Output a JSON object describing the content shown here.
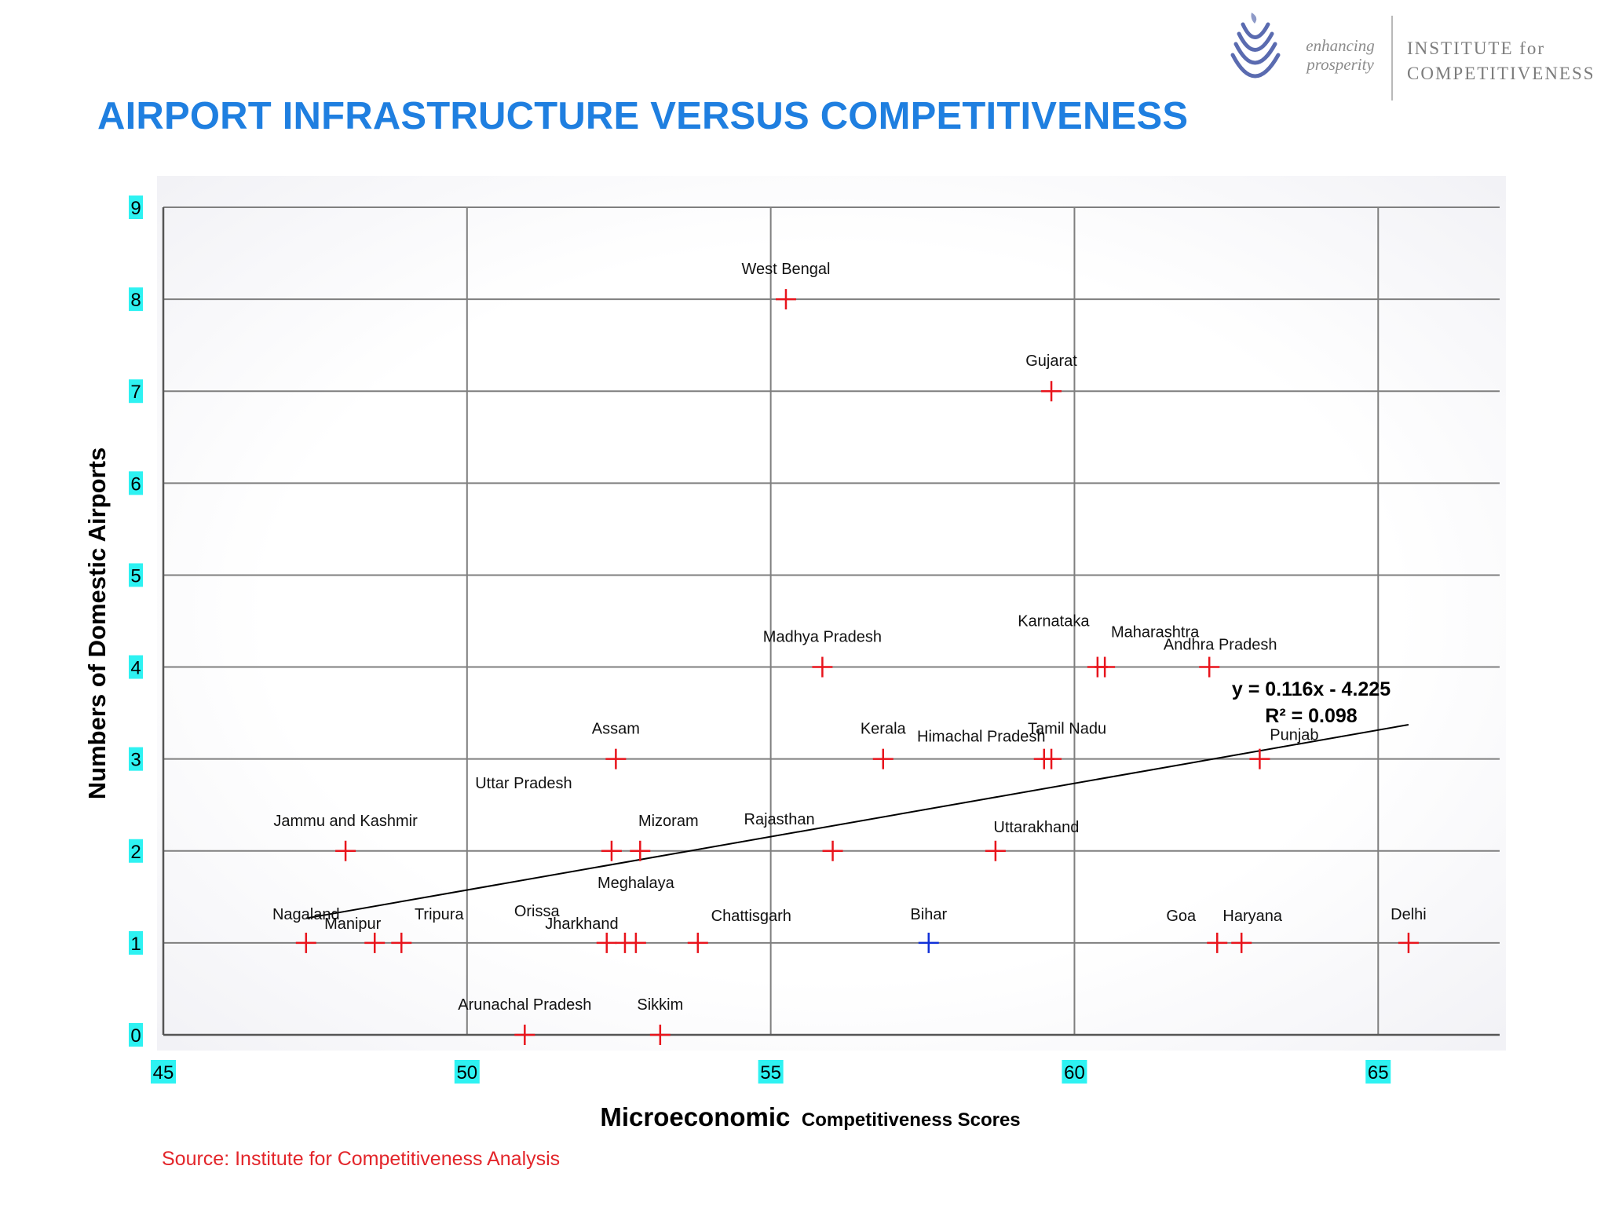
{
  "header": {
    "title": "AIRPORT INFRASTRUCTURE VERSUS COMPETITIVENESS",
    "logo": {
      "tagline_line1": "enhancing",
      "tagline_line2": "prosperity",
      "name_line1": "INSTITUTE for",
      "name_line2": "COMPETITIVENESS",
      "emblem_icon": "layered-leaf-emblem-icon",
      "emblem_color": "#5a6bb0"
    }
  },
  "footer": {
    "source": "Source: Institute for Competitiveness Analysis"
  },
  "colors": {
    "marker_default": "#e8141c",
    "marker_highlight": "#1030d8",
    "grid": "#7f7f7f",
    "tick_label_bg": "#2ef2f2",
    "trendline": "#000000"
  },
  "chart_data": {
    "type": "scatter",
    "xlabel_main": "Microeconomic",
    "xlabel_sub": "Competitiveness Scores",
    "ylabel": "Numbers of Domestic Airports",
    "xlim": [
      45,
      67
    ],
    "ylim": [
      0,
      9
    ],
    "x_ticks": [
      "45",
      "50",
      "55",
      "60",
      "65"
    ],
    "y_ticks": [
      "0",
      "1",
      "2",
      "3",
      "4",
      "5",
      "6",
      "7",
      "8",
      "9"
    ],
    "grid": true,
    "marker": "plus",
    "points": [
      {
        "label": "West Bengal",
        "x": 55.25,
        "y": 8,
        "highlight": false
      },
      {
        "label": "Gujarat",
        "x": 59.62,
        "y": 7,
        "highlight": false
      },
      {
        "label": "Madhya Pradesh",
        "x": 55.85,
        "y": 4,
        "highlight": false
      },
      {
        "label": "Karnataka",
        "x": 60.38,
        "y": 4,
        "highlight": false
      },
      {
        "label": "Maharashtra",
        "x": 60.5,
        "y": 4,
        "highlight": false
      },
      {
        "label": "Andhra Pradesh",
        "x": 62.22,
        "y": 4,
        "highlight": false
      },
      {
        "label": "Assam",
        "x": 52.45,
        "y": 3,
        "highlight": false
      },
      {
        "label": "Kerala",
        "x": 56.85,
        "y": 3,
        "highlight": false
      },
      {
        "label": "Himachal Pradesh",
        "x": 59.5,
        "y": 3,
        "highlight": false
      },
      {
        "label": "Tamil Nadu",
        "x": 59.62,
        "y": 3,
        "highlight": false
      },
      {
        "label": "Punjab",
        "x": 63.05,
        "y": 3,
        "highlight": false
      },
      {
        "label": "Jammu and Kashmir",
        "x": 48.0,
        "y": 2,
        "highlight": false
      },
      {
        "label": "Uttar Pradesh",
        "x": 52.38,
        "y": 2,
        "highlight": false
      },
      {
        "label": "Mizoram",
        "x": 52.85,
        "y": 2,
        "highlight": false
      },
      {
        "label": "Rajasthan",
        "x": 56.02,
        "y": 2,
        "highlight": false
      },
      {
        "label": "Uttarakhand",
        "x": 58.7,
        "y": 2,
        "highlight": false
      },
      {
        "label": "Nagaland",
        "x": 47.35,
        "y": 1,
        "highlight": false
      },
      {
        "label": "Manipur",
        "x": 48.48,
        "y": 1,
        "highlight": false
      },
      {
        "label": "Tripura",
        "x": 48.92,
        "y": 1,
        "highlight": false
      },
      {
        "label": "Orissa",
        "x": 52.3,
        "y": 1,
        "highlight": false
      },
      {
        "label": "Jharkhand",
        "x": 52.6,
        "y": 1,
        "highlight": false
      },
      {
        "label": "Meghalaya",
        "x": 52.78,
        "y": 1,
        "highlight": false
      },
      {
        "label": "Chattisgarh",
        "x": 53.8,
        "y": 1,
        "highlight": false
      },
      {
        "label": "Bihar",
        "x": 57.6,
        "y": 1,
        "highlight": true
      },
      {
        "label": "Goa",
        "x": 62.35,
        "y": 1,
        "highlight": false
      },
      {
        "label": "Haryana",
        "x": 62.75,
        "y": 1,
        "highlight": false
      },
      {
        "label": "Delhi",
        "x": 65.5,
        "y": 1,
        "highlight": false
      },
      {
        "label": "Arunachal Pradesh",
        "x": 50.95,
        "y": 0,
        "highlight": false
      },
      {
        "label": "Sikkim",
        "x": 53.18,
        "y": 0,
        "highlight": false
      }
    ],
    "trendline": {
      "x": [
        47.35,
        65.5
      ],
      "equation": "y = 0.116x - 4.225",
      "r_squared": "R² = 0.098"
    }
  }
}
